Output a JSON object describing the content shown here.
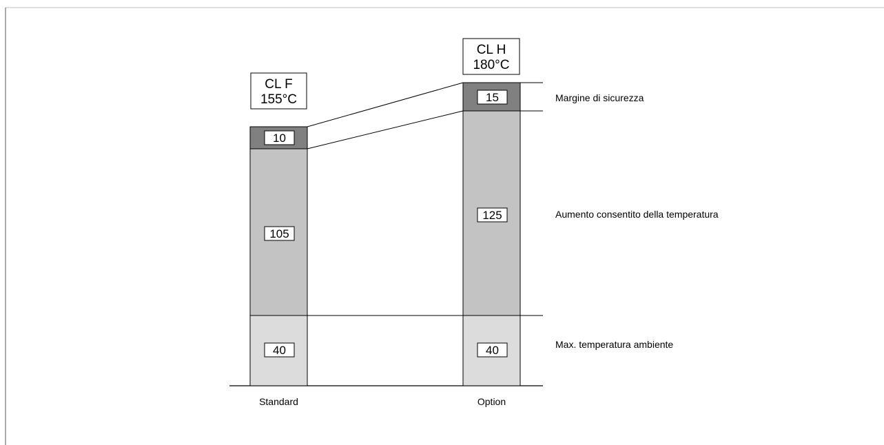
{
  "columns": [
    {
      "name": "Standard",
      "class_line1": "CL F",
      "class_line2": "155°C",
      "segments": [
        {
          "key": "ambient",
          "value": 40,
          "label": "40",
          "color": "#dcdcdc"
        },
        {
          "key": "rise",
          "value": 105,
          "label": "105",
          "color": "#c3c3c3"
        },
        {
          "key": "margin",
          "value": 10,
          "label": "10",
          "color": "#808080"
        }
      ]
    },
    {
      "name": "Option",
      "class_line1": "CL H",
      "class_line2": "180°C",
      "segments": [
        {
          "key": "ambient",
          "value": 40,
          "label": "40",
          "color": "#dcdcdc"
        },
        {
          "key": "rise",
          "value": 125,
          "label": "125",
          "color": "#c3c3c3"
        },
        {
          "key": "margin",
          "value": 15,
          "label": "15",
          "color": "#808080"
        }
      ]
    }
  ],
  "legend": {
    "margin": "Margine di sicurezza",
    "rise": "Aumento consentito della temperatura",
    "ambient": "Max. temperatura ambiente"
  }
}
